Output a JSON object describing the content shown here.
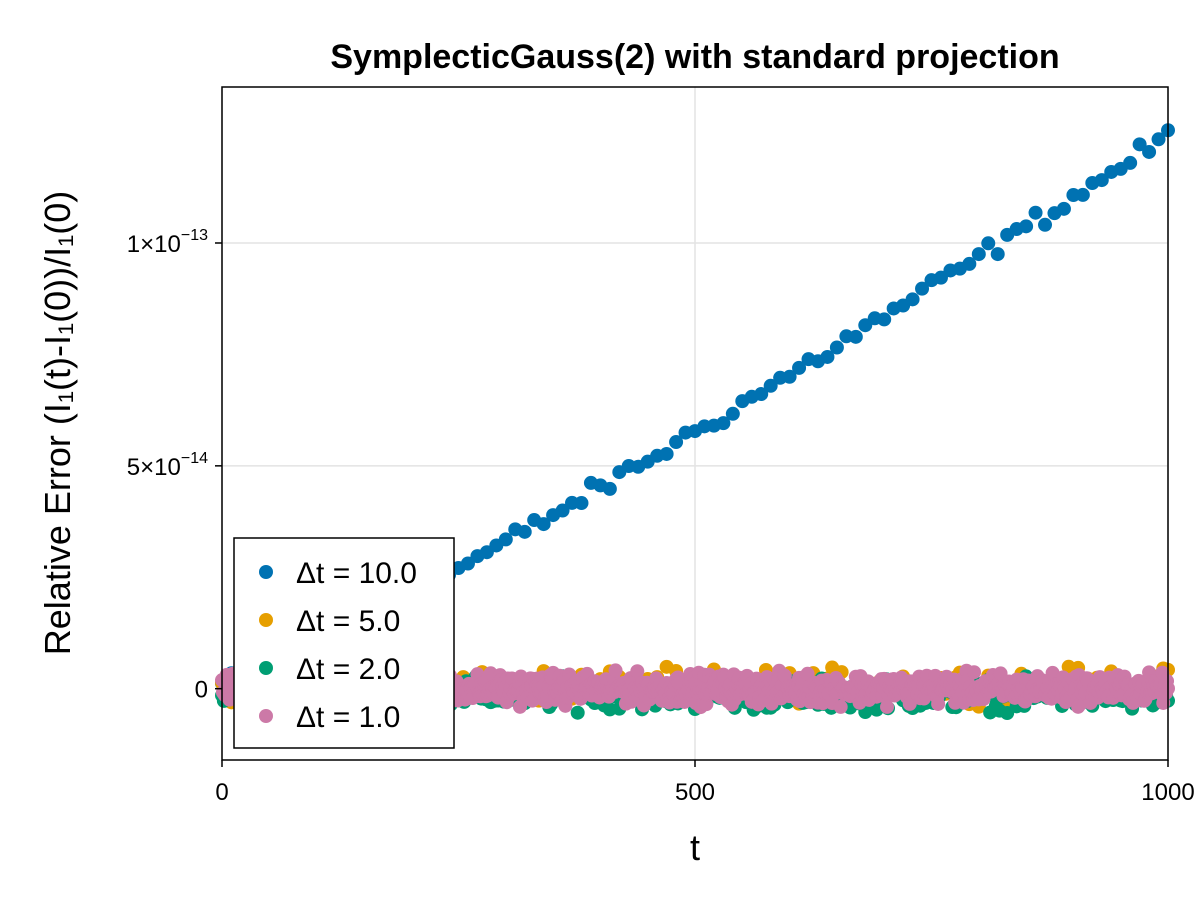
{
  "chart_data": {
    "type": "scatter",
    "title": "SymplecticGauss(2) with standard projection",
    "xlabel": "t",
    "ylabel": "Relative Error (I₁(t)-I₁(0))/I₁(0)",
    "xlim": [
      0,
      1000
    ],
    "ylim": [
      -1.6e-14,
      1.35e-13
    ],
    "x_ticks": [
      {
        "value": 0,
        "label": "0"
      },
      {
        "value": 500,
        "label": "500"
      },
      {
        "value": 1000,
        "label": "1000"
      }
    ],
    "y_ticks": [
      {
        "value": 0,
        "base": "0",
        "exp": ""
      },
      {
        "value": 5e-14,
        "base": "5×10",
        "exp": "−14"
      },
      {
        "value": 1e-13,
        "base": "1×10",
        "exp": "−13"
      }
    ],
    "grid": true,
    "legend_position": "bottom-left",
    "series": [
      {
        "name": "Δt = 10.0",
        "color": "#0072b2",
        "trend": {
          "t_start": 0,
          "t_end": 1000,
          "step": 10,
          "y_start": 1e-15,
          "y_end": 1.24e-13,
          "noise": 1.8e-15
        }
      },
      {
        "name": "Δt = 5.0",
        "color": "#e69f00",
        "trend": {
          "t_start": 0,
          "t_end": 1000,
          "step": 5,
          "y_start": 5e-16,
          "y_end": 1e-15,
          "noise": 3e-15
        }
      },
      {
        "name": "Δt = 2.0",
        "color": "#009e73",
        "trend": {
          "t_start": 0,
          "t_end": 1000,
          "step": 2,
          "y_start": -1e-15,
          "y_end": -1.5e-15,
          "noise": 2.8e-15
        }
      },
      {
        "name": "Δt = 1.0",
        "color": "#cc79a7",
        "trend": {
          "t_start": 0,
          "t_end": 1000,
          "step": 1,
          "y_start": 0,
          "y_end": 0,
          "noise": 2.8e-15
        }
      }
    ]
  }
}
